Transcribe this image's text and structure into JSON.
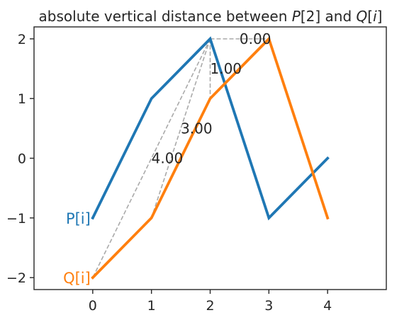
{
  "chart_data": {
    "type": "line",
    "title": "absolute vertical distance between P[2] and Q[i]",
    "title_parts": [
      "absolute vertical distance between ",
      "P",
      "[2] and ",
      "Q",
      "[",
      "i",
      "]"
    ],
    "xlabel": "",
    "ylabel": "",
    "x": [
      0,
      1,
      2,
      3,
      4
    ],
    "xlim": [
      -1,
      5
    ],
    "ylim": [
      -2.2,
      2.2
    ],
    "xticks": [
      0,
      1,
      2,
      3,
      4
    ],
    "yticks": [
      -2,
      -1,
      0,
      1,
      2
    ],
    "xtick_labels": [
      "0",
      "1",
      "2",
      "3",
      "4"
    ],
    "ytick_labels": [
      "−2",
      "−1",
      "0",
      "1",
      "2"
    ],
    "grid": false,
    "series": [
      {
        "name": "P[i]",
        "values": [
          -1,
          1,
          2,
          -1,
          0
        ],
        "color": "#1f77b4",
        "label_at": [
          0,
          -1
        ]
      },
      {
        "name": "Q[i]",
        "values": [
          -2,
          -1,
          1,
          2,
          -1
        ],
        "color": "#ff7f0e",
        "label_at": [
          0,
          -2
        ]
      }
    ],
    "reference_point": {
      "name": "P[2]",
      "x": 2,
      "y": 2
    },
    "distance_lines": [
      {
        "to_x": 0,
        "to_y": -2,
        "label": "4.00",
        "label_at": [
          1,
          0
        ]
      },
      {
        "to_x": 1,
        "to_y": -1,
        "label": "3.00",
        "label_at": [
          1.5,
          0.5
        ]
      },
      {
        "to_x": 2,
        "to_y": 1,
        "label": "1.00",
        "label_at": [
          2,
          1.5
        ]
      },
      {
        "to_x": 3,
        "to_y": 2,
        "label": "0.00",
        "label_at": [
          2.5,
          2
        ]
      }
    ],
    "distance_line_color": "#aaaaaa"
  }
}
